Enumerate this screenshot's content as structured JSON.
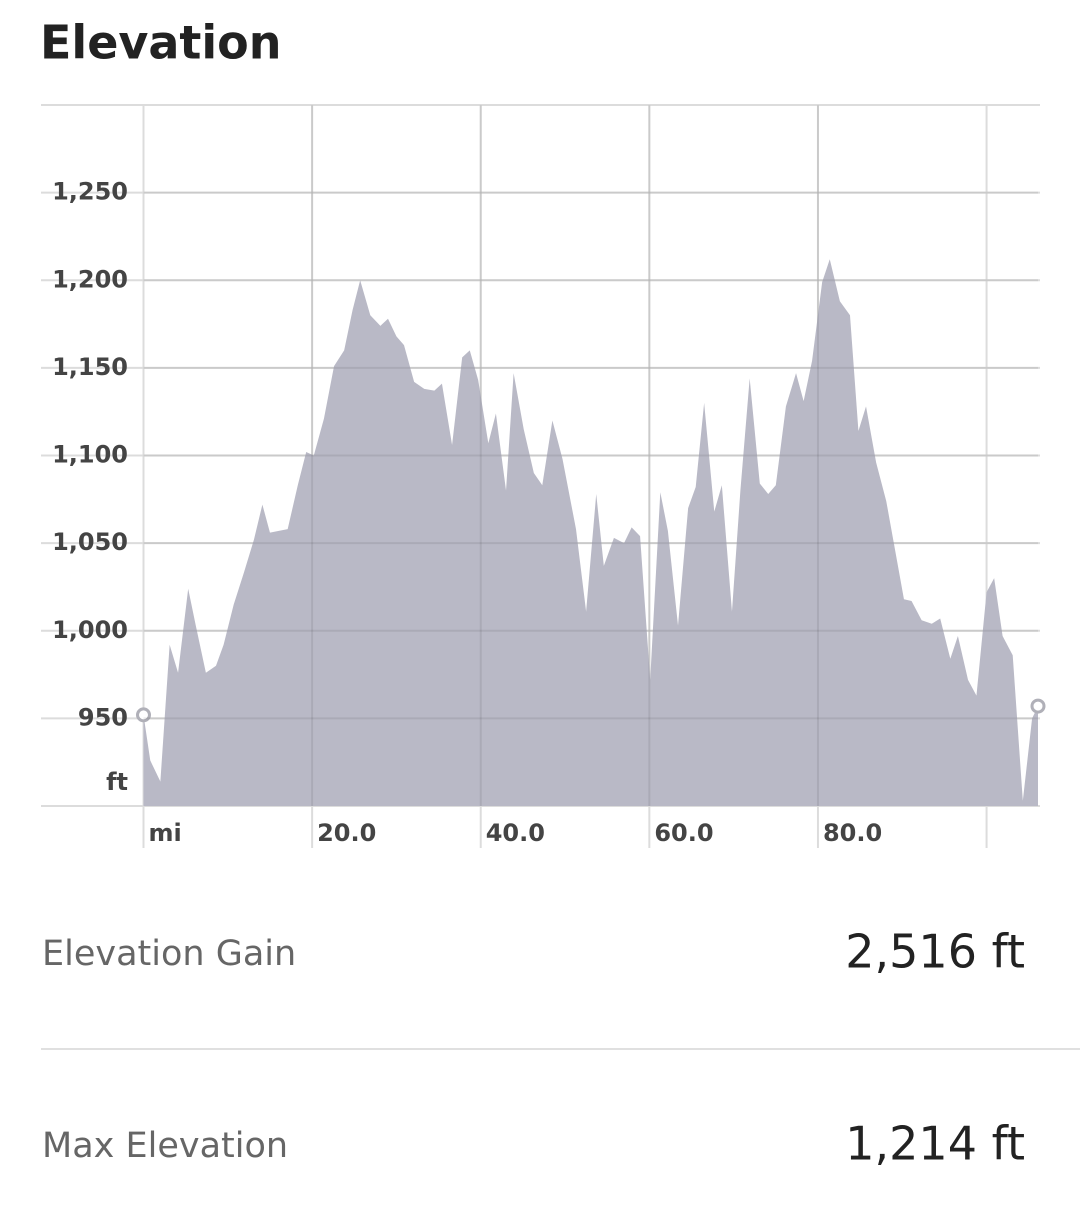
{
  "chart_data": {
    "type": "area",
    "title": "Elevation",
    "x_unit": "mi",
    "y_unit": "ft",
    "x": [
      0,
      0.8,
      2.0,
      3.1,
      4.1,
      5.3,
      6.2,
      7.4,
      8.6,
      9.5,
      10.7,
      11.9,
      13.1,
      14.1,
      15.0,
      17.1,
      18.3,
      19.3,
      20.2,
      21.4,
      22.6,
      23.8,
      24.8,
      25.7,
      26.9,
      28.1,
      29.0,
      30.0,
      30.9,
      32.1,
      33.3,
      34.5,
      35.4,
      36.6,
      37.8,
      38.7,
      39.7,
      40.9,
      41.8,
      43.0,
      43.9,
      45.1,
      46.3,
      47.3,
      48.5,
      49.7,
      51.3,
      52.5,
      53.7,
      54.6,
      55.8,
      57.0,
      57.9,
      58.9,
      60.1,
      61.3,
      62.2,
      63.4,
      64.6,
      65.5,
      66.5,
      67.7,
      68.6,
      69.8,
      70.8,
      71.9,
      73.1,
      74.1,
      75.0,
      76.2,
      77.4,
      78.3,
      79.3,
      80.5,
      81.4,
      82.6,
      83.8,
      84.8,
      85.7,
      86.9,
      88.1,
      89.0,
      90.2,
      91.1,
      92.3,
      93.5,
      94.5,
      95.7,
      96.6,
      97.8,
      98.8,
      100.0,
      100.9,
      101.9,
      103.1,
      104.3,
      105.4,
      106.1
    ],
    "values": [
      952,
      926,
      914,
      992,
      976,
      1024,
      1003,
      976,
      980,
      992,
      1015,
      1033,
      1052,
      1072,
      1056,
      1058,
      1083,
      1102,
      1100,
      1121,
      1151,
      1160,
      1183,
      1200,
      1180,
      1174,
      1178,
      1168,
      1163,
      1142,
      1138,
      1137,
      1141,
      1106,
      1156,
      1160,
      1143,
      1107,
      1124,
      1080,
      1147,
      1115,
      1090,
      1083,
      1120,
      1098,
      1058,
      1011,
      1078,
      1037,
      1053,
      1050,
      1059,
      1054,
      972,
      1079,
      1057,
      1003,
      1070,
      1082,
      1130,
      1068,
      1083,
      1011,
      1080,
      1144,
      1084,
      1078,
      1083,
      1128,
      1147,
      1131,
      1154,
      1199,
      1212,
      1188,
      1180,
      1114,
      1128,
      1096,
      1074,
      1050,
      1018,
      1017,
      1006,
      1004,
      1007,
      984,
      997,
      972,
      963,
      1022,
      1030,
      997,
      986,
      903,
      950,
      957
    ],
    "color": "#b9b9c6",
    "xlim": [
      0,
      106.1
    ],
    "ylim": [
      900,
      1300
    ],
    "xticks": [
      {
        "value": 20,
        "label": "20.0"
      },
      {
        "value": 40,
        "label": "40.0"
      },
      {
        "value": 60,
        "label": "60.0"
      },
      {
        "value": 80,
        "label": "80.0"
      }
    ],
    "xgrid": [
      0,
      100
    ],
    "yticks": [
      950,
      {
        "value": 1000,
        "label": "1,000"
      },
      {
        "value": 1050,
        "label": "1,050"
      },
      {
        "value": 1100,
        "label": "1,100"
      },
      {
        "value": 1150,
        "label": "1,150"
      },
      {
        "value": 1200,
        "label": "1,200"
      },
      {
        "value": 1250,
        "label": "1,250"
      }
    ],
    "grid": true
  },
  "stats": [
    {
      "label": "Elevation Gain",
      "value": "2,516 ft"
    },
    {
      "label": "Max Elevation",
      "value": "1,214 ft"
    }
  ]
}
